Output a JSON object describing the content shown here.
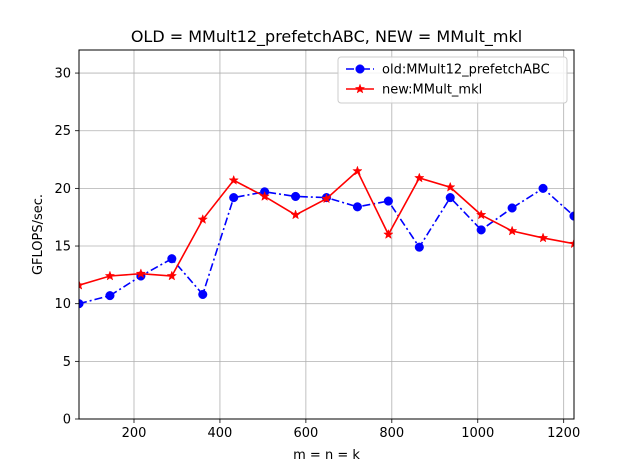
{
  "chart_data": {
    "type": "line",
    "title": "OLD = MMult12_prefetchABC, NEW = MMult_mkl",
    "xlabel": "m = n = k",
    "ylabel": "GFLOPS/sec.",
    "xlim": [
      72,
      1224
    ],
    "ylim": [
      0,
      32
    ],
    "x_ticks": [
      200,
      400,
      600,
      800,
      1000,
      1200
    ],
    "y_ticks": [
      0,
      5,
      10,
      15,
      20,
      25,
      30
    ],
    "grid": true,
    "legend_position": "top-right",
    "x": [
      72,
      144,
      216,
      288,
      360,
      432,
      504,
      576,
      648,
      720,
      792,
      864,
      936,
      1008,
      1080,
      1152,
      1224
    ],
    "series": [
      {
        "name": "old:MMult12_prefetchABC",
        "color": "#0000ff",
        "linestyle": "dashdot",
        "marker": "circle",
        "values": [
          10.0,
          10.7,
          12.4,
          13.9,
          10.8,
          19.2,
          19.7,
          19.3,
          19.2,
          18.4,
          18.9,
          14.9,
          19.2,
          16.4,
          18.3,
          20.0,
          17.6
        ]
      },
      {
        "name": "new:MMult_mkl",
        "color": "#ff0000",
        "linestyle": "solid",
        "marker": "star",
        "values": [
          11.6,
          12.4,
          12.6,
          12.4,
          17.3,
          20.7,
          19.3,
          17.7,
          19.1,
          21.5,
          16.0,
          20.9,
          20.1,
          17.7,
          16.3,
          15.7,
          15.2
        ]
      }
    ]
  }
}
